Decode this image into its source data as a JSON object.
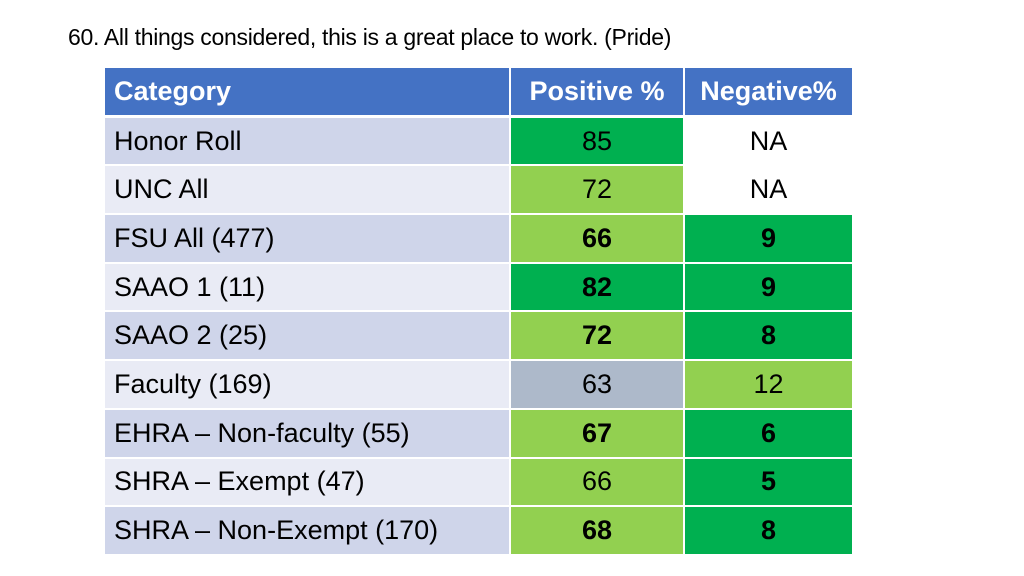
{
  "title": "60. All things considered, this is a great place to work. (Pride)",
  "colors": {
    "header": "#4472c4",
    "dark_green": "#00b050",
    "light_green": "#92d050",
    "gray_blue": "#adb9ca",
    "row_band_dark": "#cfd5ea",
    "row_band_light": "#e9ebf5",
    "white": "#ffffff"
  },
  "table": {
    "headers": {
      "category": "Category",
      "positive": "Positive %",
      "negative": "Negative%"
    },
    "rows": [
      {
        "category": "Honor Roll",
        "positive": "85",
        "negative": "NA",
        "positive_bold": false,
        "negative_bold": false,
        "positive_color": "#00b050",
        "negative_color": "#ffffff"
      },
      {
        "category": "UNC All",
        "positive": "72",
        "negative": "NA",
        "positive_bold": false,
        "negative_bold": false,
        "positive_color": "#92d050",
        "negative_color": "#ffffff"
      },
      {
        "category": "FSU All (477)",
        "positive": "66",
        "negative": "9",
        "positive_bold": true,
        "negative_bold": true,
        "positive_color": "#92d050",
        "negative_color": "#00b050"
      },
      {
        "category": "SAAO 1 (11)",
        "positive": "82",
        "negative": "9",
        "positive_bold": true,
        "negative_bold": true,
        "positive_color": "#00b050",
        "negative_color": "#00b050"
      },
      {
        "category": "SAAO 2 (25)",
        "positive": "72",
        "negative": "8",
        "positive_bold": true,
        "negative_bold": true,
        "positive_color": "#92d050",
        "negative_color": "#00b050"
      },
      {
        "category": "Faculty (169)",
        "positive": "63",
        "negative": "12",
        "positive_bold": false,
        "negative_bold": false,
        "positive_color": "#adb9ca",
        "negative_color": "#92d050"
      },
      {
        "category": "EHRA – Non-faculty (55)",
        "positive": "67",
        "negative": "6",
        "positive_bold": true,
        "negative_bold": true,
        "positive_color": "#92d050",
        "negative_color": "#00b050"
      },
      {
        "category": "SHRA – Exempt (47)",
        "positive": "66",
        "negative": "5",
        "positive_bold": false,
        "negative_bold": true,
        "positive_color": "#92d050",
        "negative_color": "#00b050"
      },
      {
        "category": "SHRA – Non-Exempt (170)",
        "positive": "68",
        "negative": "8",
        "positive_bold": true,
        "negative_bold": true,
        "positive_color": "#92d050",
        "negative_color": "#00b050"
      }
    ]
  }
}
